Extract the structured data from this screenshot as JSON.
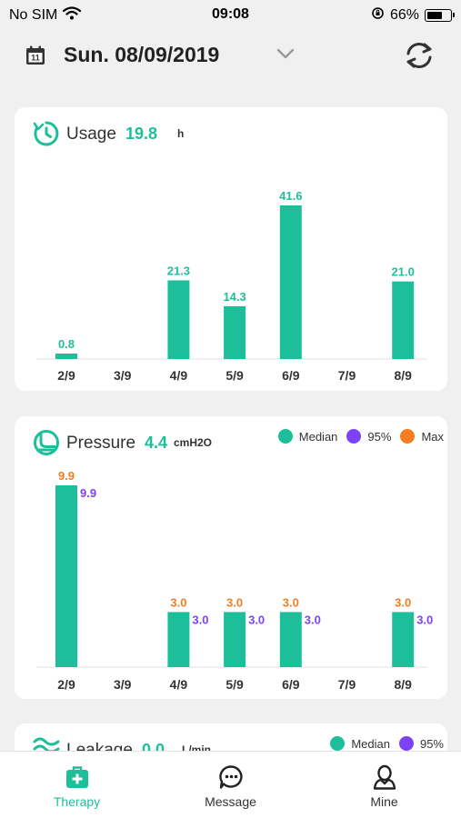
{
  "status_bar": {
    "carrier": "No SIM",
    "time": "09:08",
    "battery": "66%",
    "battery_level": 0.66
  },
  "header": {
    "date": "Sun. 08/09/2019",
    "calendar_icon": "calendar-icon",
    "dropdown_icon": "chevron-down-icon",
    "sync_icon": "sync-icon"
  },
  "usage": {
    "title": "Usage",
    "value": "19.8",
    "unit": "h",
    "chart_data": {
      "type": "bar",
      "categories": [
        "2/9",
        "3/9",
        "4/9",
        "5/9",
        "6/9",
        "7/9",
        "8/9"
      ],
      "values": [
        0.8,
        null,
        21.3,
        14.3,
        41.6,
        null,
        21.0
      ],
      "labels": [
        "0.8",
        "",
        "21.3",
        "14.3",
        "41.6",
        "",
        "21.0"
      ],
      "color": "#1dbf9b"
    }
  },
  "pressure": {
    "title": "Pressure",
    "value": "4.4",
    "unit": "cmH2O",
    "legend": [
      {
        "name": "Median",
        "color": "#1dbf9b"
      },
      {
        "name": "95%",
        "color": "#7b42f6"
      },
      {
        "name": "Max",
        "color": "#f57c1f"
      }
    ],
    "chart_data": {
      "type": "bar",
      "categories": [
        "2/9",
        "3/9",
        "4/9",
        "5/9",
        "6/9",
        "7/9",
        "8/9"
      ],
      "series": [
        {
          "name": "Median",
          "values": [
            9.9,
            null,
            3.0,
            3.0,
            3.0,
            null,
            3.0
          ]
        },
        {
          "name": "95%",
          "values": [
            9.9,
            null,
            3.0,
            3.0,
            3.0,
            null,
            3.0
          ]
        },
        {
          "name": "Max",
          "values": [
            9.9,
            null,
            3.0,
            3.0,
            3.0,
            null,
            3.0
          ]
        }
      ],
      "colors": {
        "bar": "#1dbf9b",
        "p95_label": "#7b42f6",
        "max_label": "#f57c1f"
      }
    }
  },
  "leakage": {
    "title": "Leakage",
    "value": "0.0",
    "unit": "L/min",
    "legend": [
      {
        "name": "Median",
        "color": "#1dbf9b"
      },
      {
        "name": "95%",
        "color": "#7b42f6"
      }
    ]
  },
  "tabs": [
    {
      "label": "Therapy",
      "icon": "medical-kit-icon",
      "active": true
    },
    {
      "label": "Message",
      "icon": "chat-bubble-icon",
      "active": false
    },
    {
      "label": "Mine",
      "icon": "user-icon",
      "active": false
    }
  ],
  "colors": {
    "accent": "#1dbf9b",
    "purple": "#7b42f6",
    "orange": "#f57c1f"
  }
}
